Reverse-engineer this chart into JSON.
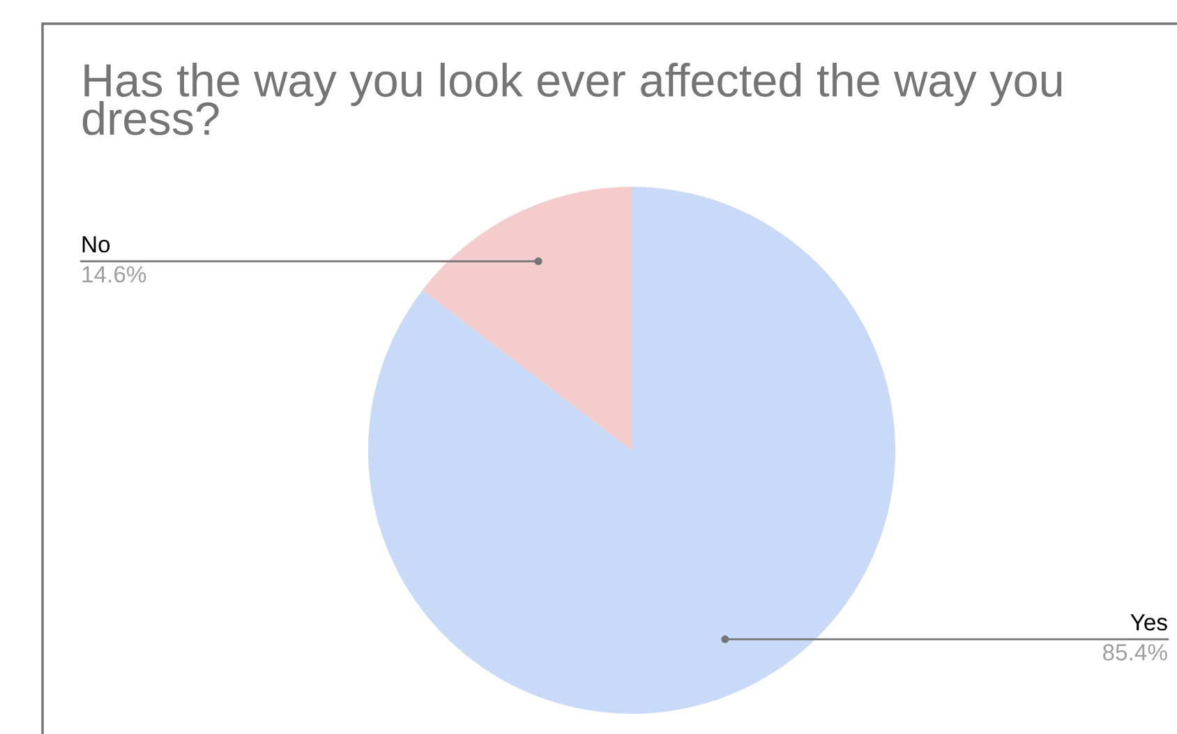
{
  "chart_data": {
    "type": "pie",
    "title": "Has the way you look ever affected the way you dress?",
    "categories": [
      "Yes",
      "No"
    ],
    "values": [
      85.4,
      14.6
    ],
    "value_labels": [
      "85.4%",
      "14.6%"
    ],
    "colors": [
      "#c9daf8",
      "#f4cccc"
    ]
  }
}
